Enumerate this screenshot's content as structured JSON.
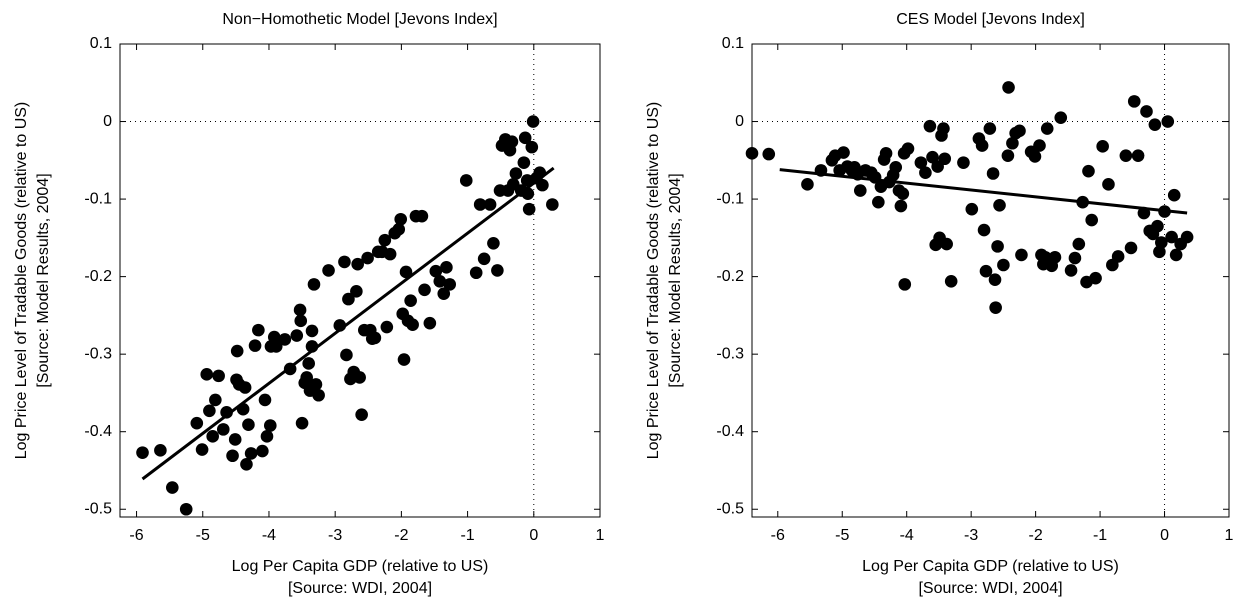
{
  "chart_data": [
    {
      "type": "scatter",
      "title": "Non−Homothetic Model [Jevons Index]",
      "x_label": [
        "Log Per Capita GDP (relative to US)",
        "[Source: WDI, 2004]"
      ],
      "y_label": [
        "Log Price Level of Tradable Goods (relative to US)",
        "[Source: Model Results, 2004]"
      ],
      "color": "#000000",
      "xlim": [
        -6.25,
        1
      ],
      "ylim": [
        -0.51,
        0.1
      ],
      "xticks": [
        -6,
        -5,
        -4,
        -3,
        -2,
        -1,
        0,
        1
      ],
      "yticks": [
        -0.5,
        -0.4,
        -0.3,
        -0.2,
        -0.1,
        0,
        0.1
      ],
      "xref": 0,
      "yref": 0,
      "x": [
        -5.91,
        -5.64,
        -5.46,
        -5.25,
        -5.09,
        -5.01,
        -4.94,
        -4.9,
        -4.85,
        -4.81,
        -4.76,
        -4.69,
        -4.64,
        -4.55,
        -4.51,
        -4.48,
        -4.49,
        -4.45,
        -4.39,
        -4.36,
        -4.34,
        -4.31,
        -4.27,
        -4.21,
        -4.16,
        -4.1,
        -4.06,
        -4.03,
        -3.98,
        -3.97,
        -3.92,
        -3.89,
        -3.76,
        -3.68,
        -3.58,
        -3.53,
        -3.52,
        -3.5,
        -3.46,
        -3.43,
        -3.4,
        -3.38,
        -3.35,
        -3.35,
        -3.32,
        -3.29,
        -3.25,
        -3.1,
        -2.93,
        -2.86,
        -2.83,
        -2.8,
        -2.77,
        -2.72,
        -2.68,
        -2.66,
        -2.63,
        -2.6,
        -2.56,
        -2.51,
        -2.47,
        -2.44,
        -2.4,
        -2.35,
        -2.29,
        -2.25,
        -2.22,
        -2.17,
        -2.1,
        -2.04,
        -2.01,
        -1.98,
        -1.96,
        -1.93,
        -1.9,
        -1.86,
        -1.83,
        -1.78,
        -1.69,
        -1.65,
        -1.57,
        -1.48,
        -1.42,
        -1.36,
        -1.32,
        -1.27,
        -1.02,
        -0.87,
        -0.81,
        -0.75,
        -0.66,
        -0.61,
        -0.55,
        -0.51,
        -0.48,
        -0.43,
        -0.39,
        -0.36,
        -0.33,
        -0.31,
        -0.27,
        -0.19,
        -0.15,
        -0.13,
        -0.1,
        -0.09,
        -0.07,
        -0.03,
        -0.01,
        0.04,
        0.09,
        0.13,
        0.28
      ],
      "values": [
        -0.427,
        -0.424,
        -0.472,
        -0.5,
        -0.389,
        -0.423,
        -0.326,
        -0.373,
        -0.406,
        -0.359,
        -0.328,
        -0.397,
        -0.375,
        -0.431,
        -0.41,
        -0.296,
        -0.333,
        -0.339,
        -0.371,
        -0.343,
        -0.442,
        -0.391,
        -0.428,
        -0.289,
        -0.269,
        -0.425,
        -0.359,
        -0.406,
        -0.392,
        -0.29,
        -0.278,
        -0.29,
        -0.281,
        -0.319,
        -0.276,
        -0.243,
        -0.257,
        -0.389,
        -0.337,
        -0.33,
        -0.312,
        -0.347,
        -0.27,
        -0.29,
        -0.21,
        -0.339,
        -0.353,
        -0.192,
        -0.263,
        -0.181,
        -0.301,
        -0.229,
        -0.332,
        -0.323,
        -0.219,
        -0.184,
        -0.33,
        -0.378,
        -0.269,
        -0.176,
        -0.269,
        -0.28,
        -0.279,
        -0.168,
        -0.168,
        -0.153,
        -0.265,
        -0.171,
        -0.144,
        -0.139,
        -0.126,
        -0.248,
        -0.307,
        -0.194,
        -0.257,
        -0.231,
        -0.262,
        -0.122,
        -0.122,
        -0.217,
        -0.26,
        -0.193,
        -0.206,
        -0.222,
        -0.188,
        -0.21,
        -0.076,
        -0.195,
        -0.107,
        -0.177,
        -0.107,
        -0.157,
        -0.192,
        -0.089,
        -0.031,
        -0.023,
        -0.089,
        -0.037,
        -0.026,
        -0.081,
        -0.067,
        -0.089,
        -0.053,
        -0.021,
        -0.076,
        -0.093,
        -0.113,
        -0.033,
        0,
        -0.073,
        -0.066,
        -0.082,
        -0.107
      ],
      "fit": {
        "x": [
          -5.91,
          0.3
        ],
        "values": [
          -0.461,
          -0.06
        ]
      }
    },
    {
      "type": "scatter",
      "title": "CES Model [Jevons Index]",
      "x_label": [
        "Log Per Capita GDP (relative to US)",
        "[Source: WDI, 2004]"
      ],
      "y_label": [
        "Log Price Level of Tradable Goods (relative to US)",
        "[Source: Model Results, 2004]"
      ],
      "color": "#000000",
      "xlim": [
        -6.4,
        1
      ],
      "ylim": [
        -0.51,
        0.1
      ],
      "xticks": [
        -6,
        -5,
        -4,
        -3,
        -2,
        -1,
        0,
        1
      ],
      "yticks": [
        -0.5,
        -0.4,
        -0.3,
        -0.2,
        -0.1,
        0,
        0.1
      ],
      "xref": 0,
      "yref": 0,
      "x": [
        -6.4,
        -6.14,
        -5.54,
        -5.33,
        -5.16,
        -5.11,
        -5.04,
        -4.98,
        -4.92,
        -4.85,
        -4.81,
        -4.76,
        -4.72,
        -4.64,
        -4.55,
        -4.49,
        -4.44,
        -4.4,
        -4.35,
        -4.32,
        -4.27,
        -4.21,
        -4.17,
        -4.12,
        -4.09,
        -4.06,
        -4.04,
        -4.03,
        -3.98,
        -3.78,
        -3.71,
        -3.64,
        -3.6,
        -3.55,
        -3.52,
        -3.49,
        -3.46,
        -3.43,
        -3.41,
        -3.38,
        -3.31,
        -3.12,
        -2.99,
        -2.88,
        -2.83,
        -2.8,
        -2.77,
        -2.71,
        -2.66,
        -2.63,
        -2.62,
        -2.59,
        -2.56,
        -2.5,
        -2.43,
        -2.42,
        -2.36,
        -2.31,
        -2.25,
        -2.22,
        -2.07,
        -2.01,
        -1.94,
        -1.91,
        -1.88,
        -1.85,
        -1.82,
        -1.75,
        -1.7,
        -1.61,
        -1.45,
        -1.39,
        -1.33,
        -1.27,
        -1.21,
        -1.18,
        -1.13,
        -1.07,
        -0.96,
        -0.87,
        -0.81,
        -0.72,
        -0.6,
        -0.52,
        -0.47,
        -0.41,
        -0.32,
        -0.28,
        -0.23,
        -0.18,
        -0.15,
        -0.11,
        -0.08,
        -0.05,
        0,
        0.05,
        0.11,
        0.15,
        0.18,
        0.25,
        0.35
      ],
      "values": [
        -0.041,
        -0.042,
        -0.081,
        -0.063,
        -0.05,
        -0.044,
        -0.063,
        -0.04,
        -0.058,
        -0.063,
        -0.059,
        -0.068,
        -0.089,
        -0.063,
        -0.066,
        -0.072,
        -0.104,
        -0.084,
        -0.049,
        -0.041,
        -0.078,
        -0.069,
        -0.059,
        -0.089,
        -0.109,
        -0.093,
        -0.041,
        -0.21,
        -0.035,
        -0.053,
        -0.066,
        -0.006,
        -0.046,
        -0.159,
        -0.058,
        -0.15,
        -0.018,
        -0.009,
        -0.048,
        -0.158,
        -0.206,
        -0.053,
        -0.113,
        -0.022,
        -0.031,
        -0.14,
        -0.193,
        -0.009,
        -0.067,
        -0.204,
        -0.24,
        -0.161,
        -0.108,
        -0.185,
        -0.044,
        0.044,
        -0.028,
        -0.015,
        -0.012,
        -0.172,
        -0.039,
        -0.045,
        -0.031,
        -0.172,
        -0.184,
        -0.175,
        -0.009,
        -0.186,
        -0.175,
        0.005,
        -0.192,
        -0.176,
        -0.158,
        -0.104,
        -0.207,
        -0.064,
        -0.127,
        -0.202,
        -0.032,
        -0.081,
        -0.185,
        -0.174,
        -0.044,
        -0.163,
        0.026,
        -0.044,
        -0.118,
        0.013,
        -0.141,
        -0.145,
        -0.004,
        -0.135,
        -0.168,
        -0.156,
        -0.116,
        0,
        -0.149,
        -0.095,
        -0.172,
        -0.158,
        -0.149
      ],
      "fit": {
        "x": [
          -5.97,
          0.35
        ],
        "values": [
          -0.062,
          -0.118
        ]
      }
    }
  ]
}
